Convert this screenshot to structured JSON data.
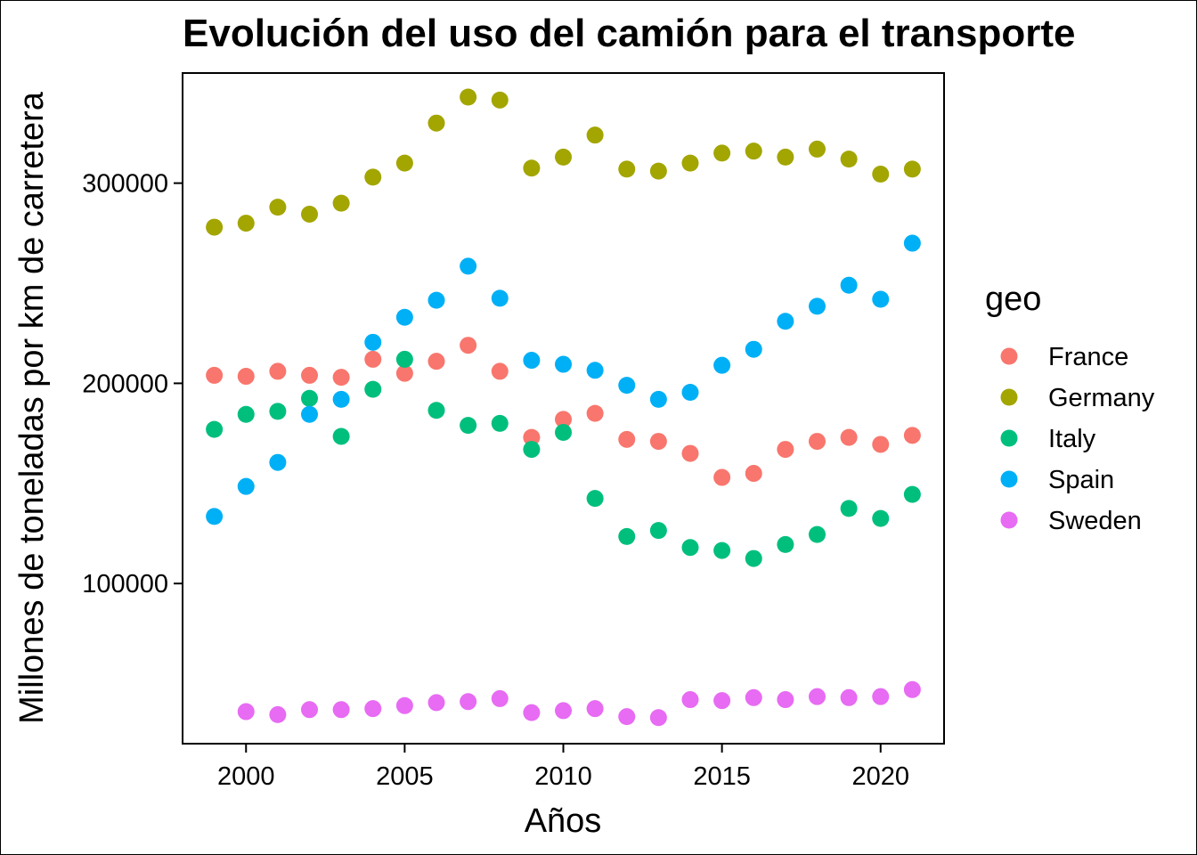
{
  "chart_data": {
    "type": "scatter",
    "title": "Evolución del uso del camión para el transporte",
    "xlabel": "Años",
    "ylabel": "Millones de toneladas por km de carretera",
    "xlim": [
      1998,
      2022
    ],
    "ylim": [
      20000,
      355000
    ],
    "x_ticks": [
      2000,
      2005,
      2010,
      2015,
      2020
    ],
    "y_ticks": [
      100000,
      200000,
      300000
    ],
    "x_tick_labels": [
      "2000",
      "2005",
      "2010",
      "2015",
      "2020"
    ],
    "y_tick_labels": [
      "100000",
      "200000",
      "300000"
    ],
    "grid": false,
    "legend": {
      "title": "geo",
      "placement": "right"
    },
    "series": [
      {
        "name": "France",
        "color": "#F8766D",
        "points": [
          [
            1999,
            204000
          ],
          [
            2000,
            203500
          ],
          [
            2001,
            206000
          ],
          [
            2002,
            204000
          ],
          [
            2003,
            203000
          ],
          [
            2004,
            212000
          ],
          [
            2005,
            205000
          ],
          [
            2006,
            211000
          ],
          [
            2007,
            219000
          ],
          [
            2008,
            206000
          ],
          [
            2009,
            173000
          ],
          [
            2010,
            182000
          ],
          [
            2011,
            185000
          ],
          [
            2012,
            172000
          ],
          [
            2013,
            171000
          ],
          [
            2014,
            165000
          ],
          [
            2015,
            153000
          ],
          [
            2016,
            155000
          ],
          [
            2017,
            167000
          ],
          [
            2018,
            171000
          ],
          [
            2019,
            173000
          ],
          [
            2020,
            169500
          ],
          [
            2021,
            174000
          ]
        ]
      },
      {
        "name": "Germany",
        "color": "#A3A500",
        "points": [
          [
            1999,
            278000
          ],
          [
            2000,
            280000
          ],
          [
            2001,
            288000
          ],
          [
            2002,
            284500
          ],
          [
            2003,
            290000
          ],
          [
            2004,
            303000
          ],
          [
            2005,
            310000
          ],
          [
            2006,
            330000
          ],
          [
            2007,
            343000
          ],
          [
            2008,
            341500
          ],
          [
            2009,
            307500
          ],
          [
            2010,
            313000
          ],
          [
            2011,
            324000
          ],
          [
            2012,
            307000
          ],
          [
            2013,
            306000
          ],
          [
            2014,
            310000
          ],
          [
            2015,
            315000
          ],
          [
            2016,
            316000
          ],
          [
            2017,
            313000
          ],
          [
            2018,
            317000
          ],
          [
            2019,
            312000
          ],
          [
            2020,
            304500
          ],
          [
            2021,
            307000
          ]
        ]
      },
      {
        "name": "Italy",
        "color": "#00BF7D",
        "points": [
          [
            1999,
            177000
          ],
          [
            2000,
            184500
          ],
          [
            2001,
            186000
          ],
          [
            2002,
            192500
          ],
          [
            2003,
            173500
          ],
          [
            2004,
            197000
          ],
          [
            2005,
            212000
          ],
          [
            2006,
            186500
          ],
          [
            2007,
            179000
          ],
          [
            2008,
            180000
          ],
          [
            2009,
            167000
          ],
          [
            2010,
            175500
          ],
          [
            2011,
            142500
          ],
          [
            2012,
            123500
          ],
          [
            2013,
            126500
          ],
          [
            2014,
            118000
          ],
          [
            2015,
            116500
          ],
          [
            2016,
            112500
          ],
          [
            2017,
            119500
          ],
          [
            2018,
            124500
          ],
          [
            2019,
            137500
          ],
          [
            2020,
            132500
          ],
          [
            2021,
            144500
          ]
        ]
      },
      {
        "name": "Spain",
        "color": "#00B0F6",
        "points": [
          [
            1999,
            133500
          ],
          [
            2000,
            148500
          ],
          [
            2001,
            160500
          ],
          [
            2002,
            184500
          ],
          [
            2003,
            192000
          ],
          [
            2004,
            220500
          ],
          [
            2005,
            233000
          ],
          [
            2006,
            241500
          ],
          [
            2007,
            258500
          ],
          [
            2008,
            242500
          ],
          [
            2009,
            211500
          ],
          [
            2010,
            209500
          ],
          [
            2011,
            206500
          ],
          [
            2012,
            199000
          ],
          [
            2013,
            192000
          ],
          [
            2014,
            195500
          ],
          [
            2015,
            209000
          ],
          [
            2016,
            217000
          ],
          [
            2017,
            231000
          ],
          [
            2018,
            238500
          ],
          [
            2019,
            249000
          ],
          [
            2020,
            242000
          ],
          [
            2021,
            270000
          ]
        ]
      },
      {
        "name": "Sweden",
        "color": "#E76BF3",
        "points": [
          [
            2000,
            36000
          ],
          [
            2001,
            34500
          ],
          [
            2002,
            37000
          ],
          [
            2003,
            37000
          ],
          [
            2004,
            37500
          ],
          [
            2005,
            39000
          ],
          [
            2006,
            40500
          ],
          [
            2007,
            41000
          ],
          [
            2008,
            42500
          ],
          [
            2009,
            35500
          ],
          [
            2010,
            36500
          ],
          [
            2011,
            37500
          ],
          [
            2012,
            33500
          ],
          [
            2013,
            33000
          ],
          [
            2014,
            42000
          ],
          [
            2015,
            41500
          ],
          [
            2016,
            43000
          ],
          [
            2017,
            42000
          ],
          [
            2018,
            43500
          ],
          [
            2019,
            43000
          ],
          [
            2020,
            43500
          ],
          [
            2021,
            47000
          ]
        ]
      }
    ]
  }
}
